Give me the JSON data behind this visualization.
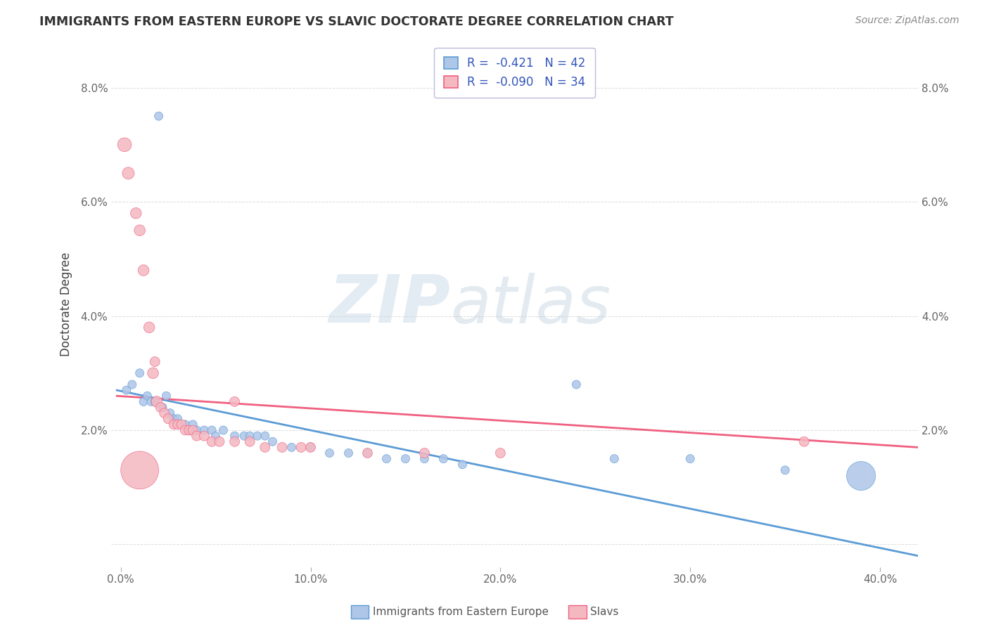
{
  "title": "IMMIGRANTS FROM EASTERN EUROPE VS SLAVIC DOCTORATE DEGREE CORRELATION CHART",
  "source": "Source: ZipAtlas.com",
  "xlabel_ticks": [
    "0.0%",
    "10.0%",
    "20.0%",
    "30.0%",
    "40.0%"
  ],
  "ylabel_ticks_left": [
    "",
    "2.0%",
    "4.0%",
    "6.0%",
    "8.0%"
  ],
  "ylabel_ticks_right": [
    "",
    "2.0%",
    "4.0%",
    "6.0%",
    "8.0%"
  ],
  "xlim": [
    -0.005,
    0.42
  ],
  "ylim": [
    -0.004,
    0.088
  ],
  "ytick_vals": [
    0.0,
    0.02,
    0.04,
    0.06,
    0.08
  ],
  "xtick_vals": [
    0.0,
    0.1,
    0.2,
    0.3,
    0.4
  ],
  "ylabel": "Doctorate Degree",
  "watermark_zip": "ZIP",
  "watermark_atlas": "atlas",
  "blue_scatter": [
    [
      0.003,
      0.027
    ],
    [
      0.006,
      0.028
    ],
    [
      0.01,
      0.03
    ],
    [
      0.012,
      0.025
    ],
    [
      0.014,
      0.026
    ],
    [
      0.016,
      0.025
    ],
    [
      0.018,
      0.025
    ],
    [
      0.022,
      0.024
    ],
    [
      0.024,
      0.026
    ],
    [
      0.026,
      0.023
    ],
    [
      0.028,
      0.022
    ],
    [
      0.03,
      0.022
    ],
    [
      0.034,
      0.021
    ],
    [
      0.036,
      0.02
    ],
    [
      0.038,
      0.021
    ],
    [
      0.04,
      0.02
    ],
    [
      0.044,
      0.02
    ],
    [
      0.048,
      0.02
    ],
    [
      0.05,
      0.019
    ],
    [
      0.054,
      0.02
    ],
    [
      0.06,
      0.019
    ],
    [
      0.065,
      0.019
    ],
    [
      0.068,
      0.019
    ],
    [
      0.072,
      0.019
    ],
    [
      0.076,
      0.019
    ],
    [
      0.08,
      0.018
    ],
    [
      0.09,
      0.017
    ],
    [
      0.1,
      0.017
    ],
    [
      0.11,
      0.016
    ],
    [
      0.12,
      0.016
    ],
    [
      0.13,
      0.016
    ],
    [
      0.14,
      0.015
    ],
    [
      0.15,
      0.015
    ],
    [
      0.16,
      0.015
    ],
    [
      0.17,
      0.015
    ],
    [
      0.18,
      0.014
    ],
    [
      0.02,
      0.075
    ],
    [
      0.24,
      0.028
    ],
    [
      0.26,
      0.015
    ],
    [
      0.3,
      0.015
    ],
    [
      0.35,
      0.013
    ],
    [
      0.39,
      0.012
    ]
  ],
  "blue_sizes": [
    30,
    30,
    30,
    30,
    30,
    30,
    30,
    30,
    30,
    30,
    30,
    30,
    30,
    30,
    30,
    30,
    30,
    30,
    30,
    30,
    30,
    30,
    30,
    30,
    30,
    30,
    30,
    30,
    30,
    30,
    30,
    30,
    30,
    30,
    30,
    30,
    30,
    30,
    30,
    30,
    30,
    350
  ],
  "pink_scatter": [
    [
      0.002,
      0.07
    ],
    [
      0.004,
      0.065
    ],
    [
      0.008,
      0.058
    ],
    [
      0.01,
      0.055
    ],
    [
      0.012,
      0.048
    ],
    [
      0.015,
      0.038
    ],
    [
      0.017,
      0.03
    ],
    [
      0.019,
      0.025
    ],
    [
      0.021,
      0.024
    ],
    [
      0.023,
      0.023
    ],
    [
      0.025,
      0.022
    ],
    [
      0.028,
      0.021
    ],
    [
      0.03,
      0.021
    ],
    [
      0.032,
      0.021
    ],
    [
      0.034,
      0.02
    ],
    [
      0.036,
      0.02
    ],
    [
      0.038,
      0.02
    ],
    [
      0.04,
      0.019
    ],
    [
      0.044,
      0.019
    ],
    [
      0.048,
      0.018
    ],
    [
      0.052,
      0.018
    ],
    [
      0.06,
      0.018
    ],
    [
      0.068,
      0.018
    ],
    [
      0.076,
      0.017
    ],
    [
      0.085,
      0.017
    ],
    [
      0.095,
      0.017
    ],
    [
      0.018,
      0.032
    ],
    [
      0.06,
      0.025
    ],
    [
      0.1,
      0.017
    ],
    [
      0.13,
      0.016
    ],
    [
      0.16,
      0.016
    ],
    [
      0.2,
      0.016
    ],
    [
      0.36,
      0.018
    ],
    [
      0.01,
      0.013
    ]
  ],
  "pink_sizes": [
    80,
    60,
    50,
    50,
    50,
    50,
    50,
    50,
    40,
    40,
    40,
    40,
    40,
    40,
    40,
    40,
    40,
    40,
    40,
    40,
    40,
    40,
    40,
    40,
    40,
    40,
    40,
    40,
    40,
    40,
    40,
    40,
    40,
    600
  ],
  "blue_line": {
    "x0": -0.002,
    "y0": 0.027,
    "x1": 0.42,
    "y1": -0.002
  },
  "pink_line": {
    "x0": -0.002,
    "y0": 0.026,
    "x1": 0.42,
    "y1": 0.017
  },
  "grid_color": "#cccccc",
  "bg_color": "#ffffff",
  "scatter_blue_color": "#aec6e8",
  "scatter_pink_color": "#f4b8c1",
  "line_blue_color": "#5b9bd5",
  "line_pink_color": "#f06080",
  "legend_label_blue": "R =  -0.421   N = 42",
  "legend_label_pink": "R =  -0.090   N = 34",
  "bottom_legend_blue": "Immigrants from Eastern Europe",
  "bottom_legend_pink": "Slavs"
}
